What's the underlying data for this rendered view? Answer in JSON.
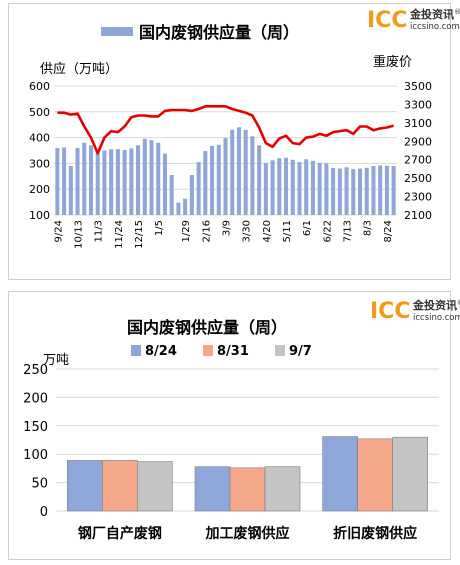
{
  "chart_data": [
    {
      "type": "bar+line",
      "title": "国内废钢供应量（周）",
      "legend_label": "",
      "ylabel_left": "供应（万吨）",
      "ylabel_right": "重废价",
      "ylim_left": [
        100,
        600
      ],
      "yticks_left": [
        "600",
        "500",
        "400",
        "300",
        "200",
        "100"
      ],
      "ylim_right": [
        2100,
        3500
      ],
      "yticks_right": [
        "3500",
        "3300",
        "3100",
        "2900",
        "2700",
        "2500",
        "2300",
        "2100"
      ],
      "categories": [
        "9/24",
        "",
        "",
        "10/13",
        "",
        "",
        "11/3",
        "",
        "",
        "11/24",
        "",
        "",
        "12/15",
        "",
        "",
        "1/5",
        "",
        "",
        "",
        "1/29",
        "",
        "",
        "2/16",
        "",
        "",
        "3/9",
        "",
        "",
        "3/30",
        "",
        "",
        "4/20",
        "",
        "",
        "5/11",
        "",
        "",
        "6/1",
        "",
        "",
        "6/22",
        "",
        "",
        "7/13",
        "",
        "",
        "8/3",
        "",
        "",
        "8/24",
        "",
        ""
      ],
      "xtick_labels": [
        "9/24",
        "10/13",
        "11/3",
        "11/24",
        "12/15",
        "1/5",
        "1/29",
        "2/16",
        "3/9",
        "3/30",
        "4/20",
        "5/11",
        "6/1",
        "6/22",
        "7/13",
        "8/3",
        "8/24"
      ],
      "bars": [
        360,
        362,
        290,
        360,
        380,
        370,
        340,
        350,
        355,
        355,
        352,
        358,
        370,
        395,
        390,
        380,
        338,
        255,
        148,
        163,
        255,
        305,
        348,
        368,
        372,
        398,
        430,
        440,
        430,
        405,
        370,
        302,
        312,
        320,
        322,
        314,
        305,
        316,
        310,
        302,
        300,
        282,
        280,
        285,
        278,
        280,
        283,
        290,
        292,
        291,
        290
      ],
      "line": [
        3210,
        3210,
        3190,
        3200,
        3060,
        2940,
        2770,
        2940,
        3010,
        3000,
        3060,
        3160,
        3180,
        3180,
        3170,
        3170,
        3230,
        3240,
        3240,
        3240,
        3230,
        3250,
        3280,
        3280,
        3280,
        3280,
        3250,
        3230,
        3210,
        3180,
        3050,
        2880,
        2840,
        2930,
        2960,
        2880,
        2870,
        2940,
        2950,
        2980,
        2960,
        3000,
        3010,
        3020,
        2980,
        3060,
        3060,
        3020,
        3040,
        3050,
        3070
      ]
    },
    {
      "type": "bar",
      "title": "国内废钢供应量（周）",
      "unit_label": "万吨",
      "ylim": [
        0,
        250
      ],
      "yticks": [
        "250",
        "200",
        "150",
        "100",
        "50",
        "0"
      ],
      "categories": [
        "钢厂自产废钢",
        "加工废钢供应",
        "折旧废钢供应"
      ],
      "series": [
        {
          "name": "8/24",
          "color": "#8fa6d9",
          "values": [
            89,
            78,
            131
          ]
        },
        {
          "name": "8/31",
          "color": "#f5a98a",
          "values": [
            89,
            76,
            127
          ]
        },
        {
          "name": "9/7",
          "color": "#c4c4c4",
          "values": [
            87,
            78,
            130
          ]
        }
      ]
    }
  ],
  "logo": {
    "mark": "ICC",
    "cn": "金投资讯",
    "url": "iccsino.com",
    "reg": "®"
  },
  "colors": {
    "bar1": "#8fa6d9",
    "line1": "#e60000",
    "grid": "#d9d9d9",
    "logo": "#f29a1e"
  }
}
